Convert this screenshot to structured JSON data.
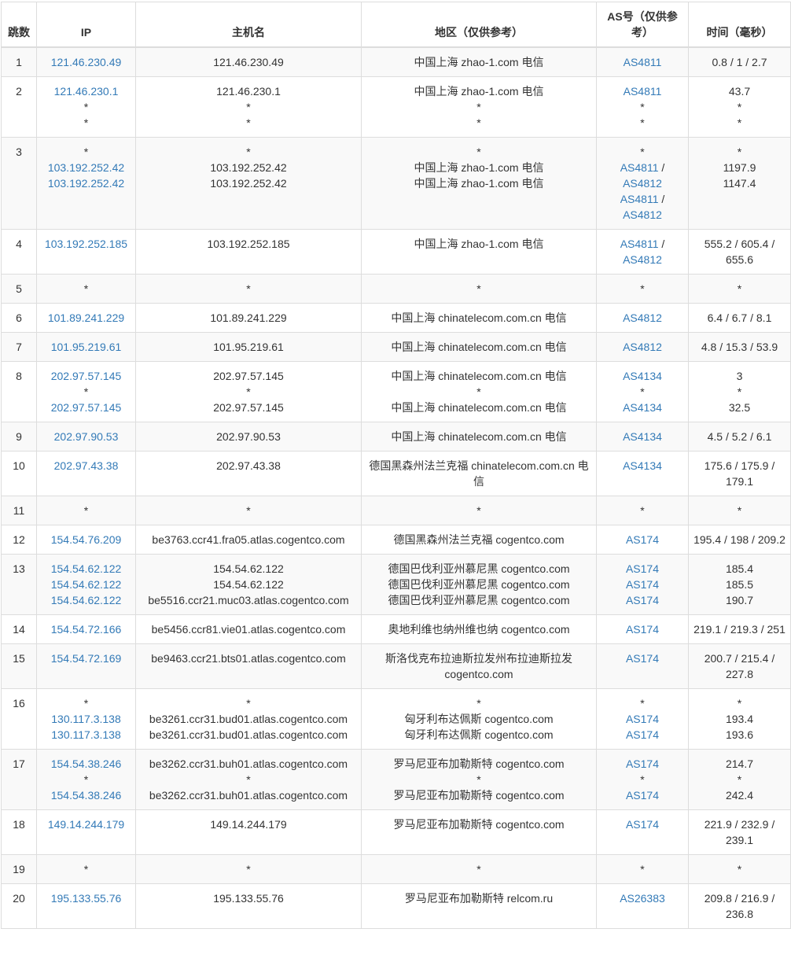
{
  "headers": [
    "跳数",
    "IP",
    "主机名",
    "地区（仅供参考）",
    "AS号（仅供参考）",
    "时间（毫秒）"
  ],
  "colors": {
    "link": "#337ab7",
    "stripe": "#f9f9f9",
    "border": "#dddddd",
    "text": "#333333"
  },
  "rows": [
    {
      "hop": "1",
      "ip": [
        "121.46.230.49"
      ],
      "host": [
        "121.46.230.49"
      ],
      "loc": [
        "中国上海 zhao-1.com 电信"
      ],
      "as": [
        [
          "AS4811"
        ]
      ],
      "time": [
        "0.8 / 1 / 2.7"
      ]
    },
    {
      "hop": "2",
      "ip": [
        "121.46.230.1",
        "*",
        "*"
      ],
      "host": [
        "121.46.230.1",
        "*",
        "*"
      ],
      "loc": [
        "中国上海 zhao-1.com 电信",
        "*",
        "*"
      ],
      "as": [
        [
          "AS4811"
        ],
        [
          "*"
        ],
        [
          "*"
        ]
      ],
      "time": [
        "43.7",
        "*",
        "*"
      ]
    },
    {
      "hop": "3",
      "ip": [
        "*",
        "103.192.252.42",
        "103.192.252.42"
      ],
      "host": [
        "*",
        "103.192.252.42",
        "103.192.252.42"
      ],
      "loc": [
        "*",
        "中国上海 zhao-1.com 电信",
        "中国上海 zhao-1.com 电信"
      ],
      "as": [
        [
          "*"
        ],
        [
          "AS4811",
          "AS4812"
        ],
        [
          "AS4811",
          "AS4812"
        ]
      ],
      "time": [
        "*",
        "1197.9",
        "1147.4"
      ]
    },
    {
      "hop": "4",
      "ip": [
        "103.192.252.185"
      ],
      "host": [
        "103.192.252.185"
      ],
      "loc": [
        "中国上海 zhao-1.com 电信"
      ],
      "as": [
        [
          "AS4811",
          "AS4812"
        ]
      ],
      "time": [
        "555.2 / 605.4 / 655.6"
      ]
    },
    {
      "hop": "5",
      "ip": [
        "*"
      ],
      "host": [
        "*"
      ],
      "loc": [
        "*"
      ],
      "as": [
        [
          "*"
        ]
      ],
      "time": [
        "*"
      ]
    },
    {
      "hop": "6",
      "ip": [
        "101.89.241.229"
      ],
      "host": [
        "101.89.241.229"
      ],
      "loc": [
        "中国上海 chinatelecom.com.cn 电信"
      ],
      "as": [
        [
          "AS4812"
        ]
      ],
      "time": [
        "6.4 / 6.7 / 8.1"
      ]
    },
    {
      "hop": "7",
      "ip": [
        "101.95.219.61"
      ],
      "host": [
        "101.95.219.61"
      ],
      "loc": [
        "中国上海 chinatelecom.com.cn 电信"
      ],
      "as": [
        [
          "AS4812"
        ]
      ],
      "time": [
        "4.8 / 15.3 / 53.9"
      ]
    },
    {
      "hop": "8",
      "ip": [
        "202.97.57.145",
        "*",
        "202.97.57.145"
      ],
      "host": [
        "202.97.57.145",
        "*",
        "202.97.57.145"
      ],
      "loc": [
        "中国上海 chinatelecom.com.cn 电信",
        "*",
        "中国上海 chinatelecom.com.cn 电信"
      ],
      "as": [
        [
          "AS4134"
        ],
        [
          "*"
        ],
        [
          "AS4134"
        ]
      ],
      "time": [
        "3",
        "*",
        "32.5"
      ]
    },
    {
      "hop": "9",
      "ip": [
        "202.97.90.53"
      ],
      "host": [
        "202.97.90.53"
      ],
      "loc": [
        "中国上海 chinatelecom.com.cn 电信"
      ],
      "as": [
        [
          "AS4134"
        ]
      ],
      "time": [
        "4.5 / 5.2 / 6.1"
      ]
    },
    {
      "hop": "10",
      "ip": [
        "202.97.43.38"
      ],
      "host": [
        "202.97.43.38"
      ],
      "loc": [
        "德国黑森州法兰克福 chinatelecom.com.cn 电信"
      ],
      "as": [
        [
          "AS4134"
        ]
      ],
      "time": [
        "175.6 / 175.9 / 179.1"
      ]
    },
    {
      "hop": "11",
      "ip": [
        "*"
      ],
      "host": [
        "*"
      ],
      "loc": [
        "*"
      ],
      "as": [
        [
          "*"
        ]
      ],
      "time": [
        "*"
      ]
    },
    {
      "hop": "12",
      "ip": [
        "154.54.76.209"
      ],
      "host": [
        "be3763.ccr41.fra05.atlas.cogentco.com"
      ],
      "loc": [
        "德国黑森州法兰克福 cogentco.com"
      ],
      "as": [
        [
          "AS174"
        ]
      ],
      "time": [
        "195.4 / 198 / 209.2"
      ]
    },
    {
      "hop": "13",
      "ip": [
        "154.54.62.122",
        "154.54.62.122",
        "154.54.62.122"
      ],
      "host": [
        "154.54.62.122",
        "154.54.62.122",
        "be5516.ccr21.muc03.atlas.cogentco.com"
      ],
      "loc": [
        "德国巴伐利亚州慕尼黑 cogentco.com",
        "德国巴伐利亚州慕尼黑 cogentco.com",
        "德国巴伐利亚州慕尼黑 cogentco.com"
      ],
      "as": [
        [
          "AS174"
        ],
        [
          "AS174"
        ],
        [
          "AS174"
        ]
      ],
      "time": [
        "185.4",
        "185.5",
        "190.7"
      ]
    },
    {
      "hop": "14",
      "ip": [
        "154.54.72.166"
      ],
      "host": [
        "be5456.ccr81.vie01.atlas.cogentco.com"
      ],
      "loc": [
        "奥地利维也纳州维也纳 cogentco.com"
      ],
      "as": [
        [
          "AS174"
        ]
      ],
      "time": [
        "219.1 / 219.3 / 251"
      ]
    },
    {
      "hop": "15",
      "ip": [
        "154.54.72.169"
      ],
      "host": [
        "be9463.ccr21.bts01.atlas.cogentco.com"
      ],
      "loc": [
        "斯洛伐克布拉迪斯拉发州布拉迪斯拉发 cogentco.com"
      ],
      "as": [
        [
          "AS174"
        ]
      ],
      "time": [
        "200.7 / 215.4 / 227.8"
      ]
    },
    {
      "hop": "16",
      "ip": [
        "*",
        "130.117.3.138",
        "130.117.3.138"
      ],
      "host": [
        "*",
        "be3261.ccr31.bud01.atlas.cogentco.com",
        "be3261.ccr31.bud01.atlas.cogentco.com"
      ],
      "loc": [
        "*",
        "匈牙利布达佩斯 cogentco.com",
        "匈牙利布达佩斯 cogentco.com"
      ],
      "as": [
        [
          "*"
        ],
        [
          "AS174"
        ],
        [
          "AS174"
        ]
      ],
      "time": [
        "*",
        "193.4",
        "193.6"
      ]
    },
    {
      "hop": "17",
      "ip": [
        "154.54.38.246",
        "*",
        "154.54.38.246"
      ],
      "host": [
        "be3262.ccr31.buh01.atlas.cogentco.com",
        "*",
        "be3262.ccr31.buh01.atlas.cogentco.com"
      ],
      "loc": [
        "罗马尼亚布加勒斯特 cogentco.com",
        "*",
        "罗马尼亚布加勒斯特 cogentco.com"
      ],
      "as": [
        [
          "AS174"
        ],
        [
          "*"
        ],
        [
          "AS174"
        ]
      ],
      "time": [
        "214.7",
        "*",
        "242.4"
      ]
    },
    {
      "hop": "18",
      "ip": [
        "149.14.244.179"
      ],
      "host": [
        "149.14.244.179"
      ],
      "loc": [
        "罗马尼亚布加勒斯特 cogentco.com"
      ],
      "as": [
        [
          "AS174"
        ]
      ],
      "time": [
        "221.9 / 232.9 / 239.1"
      ]
    },
    {
      "hop": "19",
      "ip": [
        "*"
      ],
      "host": [
        "*"
      ],
      "loc": [
        "*"
      ],
      "as": [
        [
          "*"
        ]
      ],
      "time": [
        "*"
      ]
    },
    {
      "hop": "20",
      "ip": [
        "195.133.55.76"
      ],
      "host": [
        "195.133.55.76"
      ],
      "loc": [
        "罗马尼亚布加勒斯特 relcom.ru"
      ],
      "as": [
        [
          "AS26383"
        ]
      ],
      "time": [
        "209.8 / 216.9 / 236.8"
      ]
    }
  ]
}
